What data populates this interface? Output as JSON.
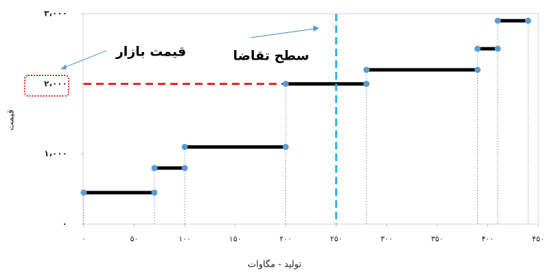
{
  "chart_data": {
    "type": "step",
    "x_label": "تولید - مگاوات",
    "y_label": "قیمت",
    "annotations": [
      "قیمت بازار",
      "سطح تقاضا"
    ],
    "segments": {
      "x0": [
        0,
        70,
        100,
        200,
        280,
        390,
        410
      ],
      "x1": [
        70,
        100,
        200,
        280,
        390,
        410,
        440
      ],
      "values": [
        450,
        800,
        1100,
        2000,
        2200,
        2500,
        2900
      ],
      "color": "#000000",
      "point_color": "#5b9bd5"
    },
    "market_price": 2000,
    "market_price_color": "#e02020",
    "demand": 250,
    "demand_color": "#1eb4e8",
    "xlim": [
      0,
      450
    ],
    "ylim": [
      0,
      3000
    ],
    "xticks": [
      {
        "value": 0,
        "label": "۰"
      },
      {
        "value": 50,
        "label": "۵۰"
      },
      {
        "value": 100,
        "label": "۱۰۰"
      },
      {
        "value": 150,
        "label": "۱۵۰"
      },
      {
        "value": 200,
        "label": "۲۰۰"
      },
      {
        "value": 250,
        "label": "۲۵۰"
      },
      {
        "value": 300,
        "label": "۳۰۰"
      },
      {
        "value": 350,
        "label": "۳۵۰"
      },
      {
        "value": 400,
        "label": "۴۰۰"
      },
      {
        "value": 450,
        "label": "۴۵۰"
      }
    ],
    "yticks": [
      {
        "value": 0,
        "label": "۰"
      },
      {
        "value": 1000,
        "label": "۱،۰۰۰"
      },
      {
        "value": 2000,
        "label": "۲،۰۰۰"
      },
      {
        "value": 3000,
        "label": "۳،۰۰۰"
      }
    ]
  }
}
